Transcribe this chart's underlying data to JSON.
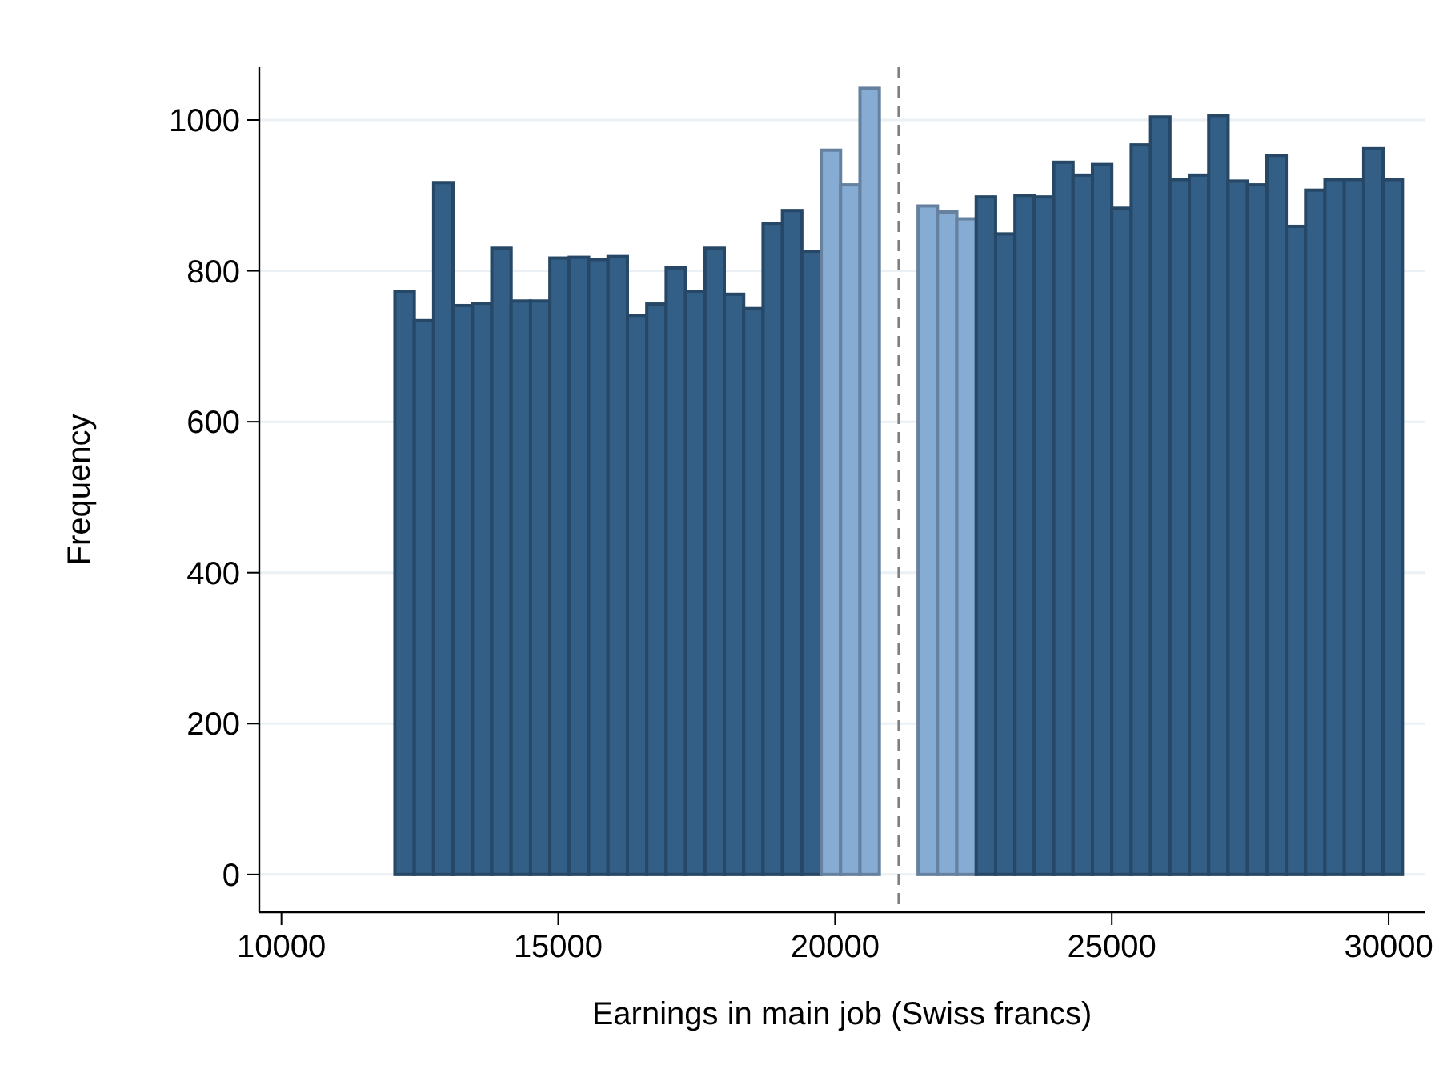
{
  "chart_data": {
    "type": "histogram",
    "xlabel": "Earnings in main job (Swiss francs)",
    "ylabel": "Frequency",
    "bins": [
      12050,
      12400,
      12750,
      13100,
      13450,
      13800,
      14150,
      14500,
      14850,
      15200,
      15550,
      15900,
      16250,
      16600,
      16950,
      17300,
      17650,
      18000,
      18350,
      18700,
      19050,
      19400,
      19750,
      20100,
      20450,
      20800,
      21150,
      21500,
      21850,
      22200,
      22550,
      22900,
      23250,
      23600,
      23950,
      24300,
      24650,
      25000,
      25350,
      25700,
      26050,
      26400,
      26750,
      27100,
      27450,
      27800,
      28150,
      28500,
      28850,
      29200,
      29550,
      29900,
      30250
    ],
    "values": [
      773,
      734,
      917,
      754,
      757,
      830,
      760,
      760,
      817,
      818,
      815,
      819,
      741,
      756,
      804,
      773,
      830,
      769,
      750,
      863,
      880,
      826,
      960,
      914,
      1042,
      0,
      0,
      886,
      878,
      869,
      898,
      849,
      900,
      898,
      944,
      927,
      941,
      883,
      967,
      1004,
      921,
      927,
      1006,
      919,
      914,
      953,
      859,
      907,
      921,
      921,
      962,
      921
    ],
    "colors": [
      "#335f86",
      "#335f86",
      "#335f86",
      "#335f86",
      "#335f86",
      "#335f86",
      "#335f86",
      "#335f86",
      "#335f86",
      "#335f86",
      "#335f86",
      "#335f86",
      "#335f86",
      "#335f86",
      "#335f86",
      "#335f86",
      "#335f86",
      "#335f86",
      "#335f86",
      "#335f86",
      "#335f86",
      "#335f86",
      "#86acd4",
      "#86acd4",
      "#86acd4",
      "#86acd4",
      "#86acd4",
      "#86acd4",
      "#86acd4",
      "#86acd4",
      "#335f86",
      "#335f86",
      "#335f86",
      "#335f86",
      "#335f86",
      "#335f86",
      "#335f86",
      "#335f86",
      "#335f86",
      "#335f86",
      "#335f86",
      "#335f86",
      "#335f86",
      "#335f86",
      "#335f86",
      "#335f86",
      "#335f86",
      "#335f86",
      "#335f86",
      "#335f86",
      "#335f86",
      "#335f86"
    ],
    "xlim": [
      9600,
      30650
    ],
    "ylim": [
      -50,
      1070
    ],
    "xticks": [
      10000,
      15000,
      20000,
      25000,
      30000
    ],
    "yticks": [
      0,
      200,
      400,
      600,
      800,
      1000
    ],
    "grid": "y",
    "ref_lines": [
      {
        "axis": "x",
        "value": 21150,
        "color": "#7f7f7f",
        "line_style": "dashed"
      }
    ]
  }
}
